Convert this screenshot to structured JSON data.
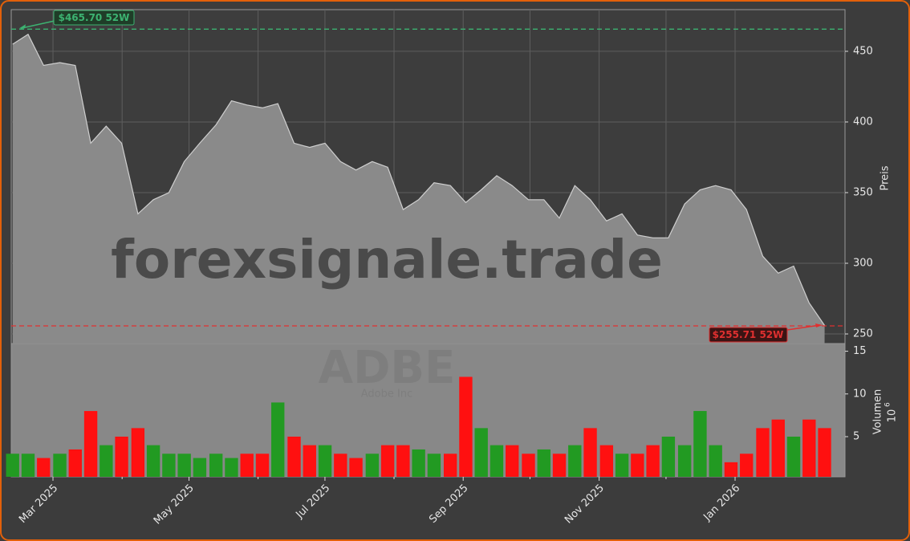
{
  "chart_data": {
    "type": "area",
    "watermark": "forexsignale.trade",
    "ticker": "ADBE",
    "company": "Adobe Inc",
    "x": [
      2025.112,
      2025.131,
      2025.15,
      2025.17,
      2025.189,
      2025.208,
      2025.227,
      2025.246,
      2025.266,
      2025.285,
      2025.304,
      2025.323,
      2025.342,
      2025.362,
      2025.381,
      2025.4,
      2025.419,
      2025.438,
      2025.458,
      2025.477,
      2025.496,
      2025.515,
      2025.534,
      2025.554,
      2025.573,
      2025.592,
      2025.611,
      2025.63,
      2025.65,
      2025.669,
      2025.688,
      2025.707,
      2025.726,
      2025.746,
      2025.765,
      2025.784,
      2025.803,
      2025.822,
      2025.842,
      2025.861,
      2025.88,
      2025.899,
      2025.918,
      2025.938,
      2025.957,
      2025.976,
      2025.995,
      2026.014,
      2026.034,
      2026.053,
      2026.072,
      2026.091,
      2026.11
    ],
    "xlim": [
      2025.1103,
      2026.1351
    ],
    "xticks": [
      {
        "value": 2025.1616,
        "label": "Mar 2025"
      },
      {
        "value": 2025.3288,
        "label": "May 2025"
      },
      {
        "value": 2025.4959,
        "label": "Jul 2025"
      },
      {
        "value": 2025.6658,
        "label": "Sep 2025"
      },
      {
        "value": 2025.8329,
        "label": "Nov 2025"
      },
      {
        "value": 2026.0,
        "label": "Jan 2026"
      }
    ],
    "xminor": [
      2025.2466,
      2025.4137,
      2025.5808,
      2025.7479,
      2025.9151
    ],
    "price": {
      "label": "Preis",
      "color": "#cfcfcf",
      "fill": "#8a8a8a",
      "values": [
        455,
        462,
        440,
        442,
        440,
        385,
        397,
        385,
        335,
        345,
        350,
        372,
        385,
        398,
        415,
        412,
        410,
        413,
        385,
        382,
        385,
        372,
        366,
        372,
        368,
        338,
        345,
        357,
        355,
        343,
        352,
        362,
        355,
        345,
        345,
        332,
        355,
        345,
        330,
        335,
        320,
        318,
        318,
        342,
        352,
        355,
        352,
        338,
        305,
        293,
        298,
        272,
        256
      ],
      "ylim": [
        243.2,
        479.5
      ],
      "yticks": [
        250,
        300,
        350,
        400,
        450
      ],
      "grid": true
    },
    "high": {
      "value": 465.7,
      "label": "$465.70 52W",
      "color": "#3cb371"
    },
    "low": {
      "value": 255.71,
      "label": "$255.71 52W",
      "color": "#e03030"
    },
    "volume": {
      "label": "Volumen",
      "offset_base": "10",
      "offset_exponent": "6",
      "up_color": "#229a22",
      "down_color": "#ff1010",
      "values": [
        3,
        3,
        2.5,
        3,
        3.5,
        8,
        4,
        5,
        6,
        4,
        3,
        3,
        2.5,
        3,
        2.5,
        3,
        3,
        9,
        5,
        4,
        4,
        3,
        2.5,
        3,
        4,
        4,
        3.5,
        3,
        3,
        12,
        6,
        4,
        4,
        3,
        3.5,
        3,
        4,
        6,
        4,
        3,
        3,
        4,
        5,
        4,
        8,
        4,
        2,
        3,
        6,
        7,
        5,
        7,
        6
      ],
      "ylim": [
        0.3,
        15.9
      ],
      "yticks": [
        5,
        10,
        15
      ]
    }
  }
}
